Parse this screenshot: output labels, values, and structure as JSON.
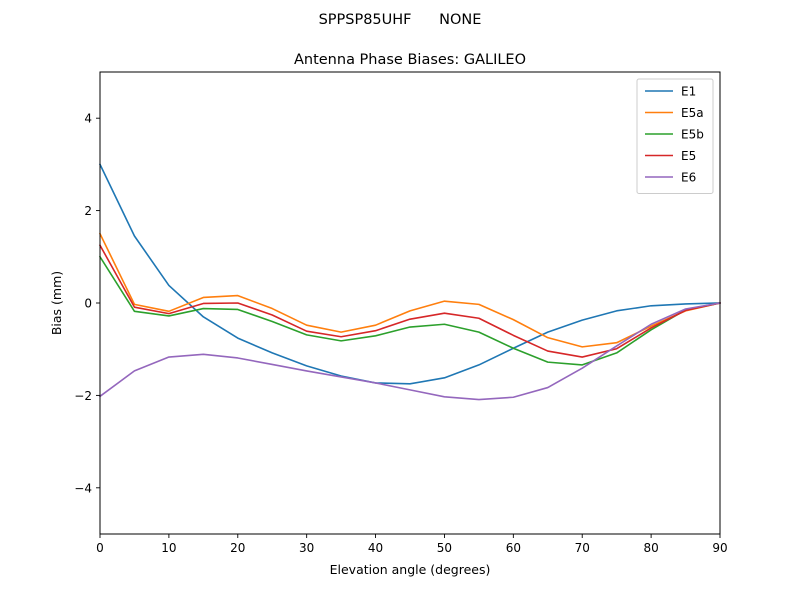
{
  "figure": {
    "suptitle": "SPPSP85UHF      NONE"
  },
  "chart_data": {
    "type": "line",
    "title": "Antenna Phase Biases: GALILEO",
    "xlabel": "Elevation angle (degrees)",
    "ylabel": "Bias (mm)",
    "xlim": [
      0,
      90
    ],
    "ylim": [
      -5,
      5
    ],
    "xticks": [
      0,
      10,
      20,
      30,
      40,
      50,
      60,
      70,
      80,
      90
    ],
    "yticks": [
      -4,
      -2,
      0,
      2,
      4
    ],
    "ytick_labels": [
      "−4",
      "−2",
      "0",
      "2",
      "4"
    ],
    "grid": false,
    "legend_position": "top-right",
    "x": [
      0,
      5,
      10,
      15,
      20,
      25,
      30,
      35,
      40,
      45,
      50,
      55,
      60,
      65,
      70,
      75,
      80,
      85,
      90
    ],
    "series": [
      {
        "name": "E1",
        "color": "#1f77b4",
        "values": [
          3.0,
          1.45,
          0.38,
          -0.3,
          -0.76,
          -1.08,
          -1.36,
          -1.58,
          -1.73,
          -1.75,
          -1.62,
          -1.34,
          -0.98,
          -0.63,
          -0.37,
          -0.17,
          -0.06,
          -0.02,
          0.0
        ]
      },
      {
        "name": "E5a",
        "color": "#ff7f0e",
        "values": [
          1.5,
          -0.03,
          -0.18,
          0.12,
          0.16,
          -0.12,
          -0.48,
          -0.63,
          -0.48,
          -0.17,
          0.04,
          -0.03,
          -0.36,
          -0.75,
          -0.95,
          -0.86,
          -0.5,
          -0.17,
          0.0
        ]
      },
      {
        "name": "E5b",
        "color": "#2ca02c",
        "values": [
          1.0,
          -0.18,
          -0.28,
          -0.12,
          -0.14,
          -0.4,
          -0.69,
          -0.82,
          -0.71,
          -0.52,
          -0.46,
          -0.63,
          -0.98,
          -1.28,
          -1.34,
          -1.08,
          -0.58,
          -0.15,
          0.0
        ]
      },
      {
        "name": "E5",
        "color": "#d62728",
        "values": [
          1.25,
          -0.09,
          -0.23,
          -0.01,
          0.0,
          -0.26,
          -0.61,
          -0.73,
          -0.6,
          -0.35,
          -0.22,
          -0.33,
          -0.7,
          -1.04,
          -1.17,
          -0.99,
          -0.54,
          -0.16,
          0.0
        ]
      },
      {
        "name": "E6",
        "color": "#9467bd",
        "values": [
          -2.02,
          -1.47,
          -1.17,
          -1.11,
          -1.19,
          -1.33,
          -1.47,
          -1.6,
          -1.73,
          -1.88,
          -2.03,
          -2.09,
          -2.04,
          -1.83,
          -1.41,
          -0.93,
          -0.46,
          -0.13,
          0.0
        ]
      }
    ]
  }
}
